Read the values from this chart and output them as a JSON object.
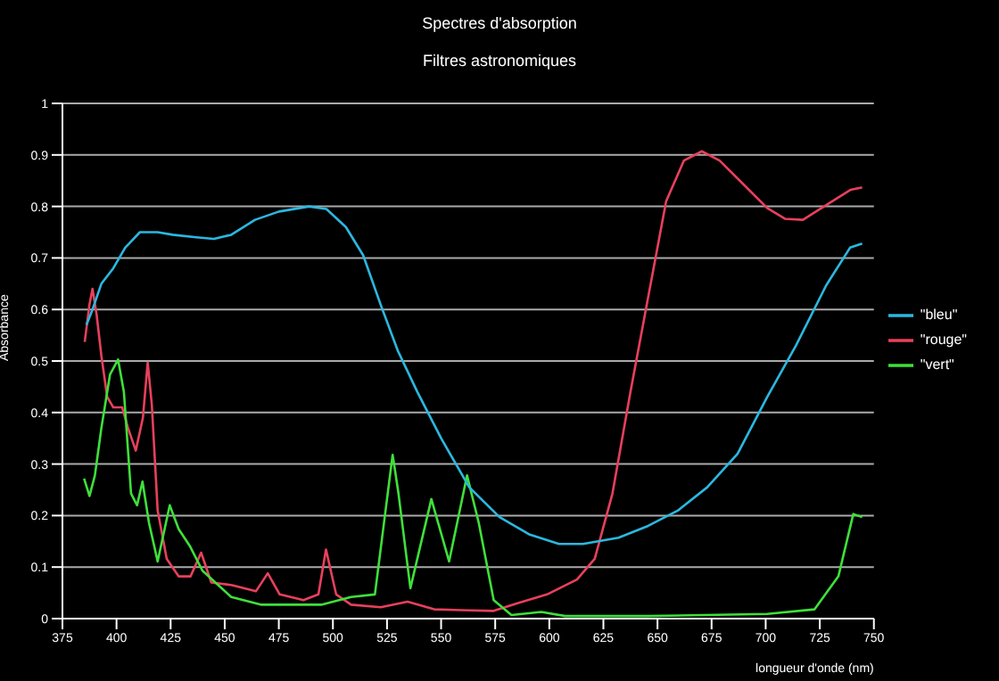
{
  "chart_data": {
    "type": "line",
    "title": "Spectres d'absorption",
    "subtitle": "Filtres astronomiques",
    "xlabel": "longueur d'onde (nm)",
    "ylabel": "Absorbance",
    "xlim": [
      375,
      750
    ],
    "xticks": [
      375,
      400,
      425,
      450,
      475,
      500,
      525,
      550,
      575,
      600,
      625,
      650,
      675,
      700,
      725,
      750
    ],
    "ylim": [
      0,
      1
    ],
    "yticks": [
      0,
      0.1,
      0.2,
      0.3,
      0.4,
      0.5,
      0.6,
      0.7,
      0.8,
      0.9,
      1
    ],
    "grid": "y",
    "legend": "right",
    "marker": "none",
    "line_style": "solid",
    "series": [
      {
        "name": "\"rouge\"",
        "color": "#e8405c",
        "x": [
          385.3,
          387.5,
          388.9,
          390.8,
          393,
          395.7,
          398.5,
          402.6,
          405.3,
          408.9,
          412.2,
          414.4,
          416.3,
          419,
          423.2,
          428.7,
          434.2,
          439.1,
          443.8,
          453.4,
          464.4,
          469.9,
          475.4,
          486.4,
          493.3,
          496.8,
          501.5,
          508.4,
          522.1,
          534.5,
          546.8,
          563.3,
          574.3,
          585.3,
          599,
          612.8,
          621,
          629.2,
          637.5,
          645.7,
          654,
          662.2,
          670.5,
          678.7,
          689.7,
          700.7,
          708.9,
          717.2,
          728.1,
          739.1,
          744.6
        ],
        "values": [
          0.537,
          0.61,
          0.64,
          0.59,
          0.51,
          0.43,
          0.41,
          0.41,
          0.37,
          0.326,
          0.39,
          0.497,
          0.416,
          0.21,
          0.116,
          0.082,
          0.082,
          0.128,
          0.07,
          0.065,
          0.053,
          0.088,
          0.047,
          0.036,
          0.047,
          0.134,
          0.047,
          0.027,
          0.022,
          0.033,
          0.018,
          0.016,
          0.015,
          0.03,
          0.047,
          0.076,
          0.116,
          0.243,
          0.44,
          0.624,
          0.81,
          0.889,
          0.907,
          0.889,
          0.843,
          0.797,
          0.776,
          0.774,
          0.803,
          0.832,
          0.837
        ]
      },
      {
        "name": "\"vert\"",
        "color": "#3ee03a",
        "x": [
          385,
          387.5,
          390,
          393,
          397,
          400.7,
          403.4,
          406.7,
          409.5,
          412,
          415,
          419,
          424.6,
          428.7,
          434,
          439.7,
          453,
          467,
          494.6,
          508.4,
          519.4,
          527.6,
          530.3,
          535.8,
          545.5,
          553.7,
          562,
          567.4,
          574.3,
          582.5,
          596.3,
          607.3,
          645.7,
          700.7,
          722.6,
          733.6,
          740.5,
          744.6
        ],
        "values": [
          0.272,
          0.238,
          0.278,
          0.37,
          0.474,
          0.503,
          0.44,
          0.243,
          0.22,
          0.266,
          0.186,
          0.111,
          0.22,
          0.174,
          0.14,
          0.093,
          0.042,
          0.027,
          0.027,
          0.042,
          0.047,
          0.318,
          0.243,
          0.059,
          0.232,
          0.111,
          0.278,
          0.186,
          0.036,
          0.007,
          0.013,
          0.005,
          0.005,
          0.009,
          0.018,
          0.082,
          0.203,
          0.197
        ]
      },
      {
        "name": "\"bleu\"",
        "color": "#2bb8e0",
        "x": [
          386.1,
          388.9,
          393,
          398.5,
          404,
          410.8,
          419,
          426,
          437,
          445,
          453,
          464,
          475,
          489,
          497,
          506,
          514,
          522,
          530,
          539,
          550,
          563,
          577,
          591,
          604.5,
          615.5,
          632,
          645.7,
          659.5,
          673,
          687,
          700.7,
          714,
          728,
          739,
          744.6
        ],
        "values": [
          0.57,
          0.6,
          0.65,
          0.68,
          0.72,
          0.75,
          0.75,
          0.745,
          0.74,
          0.737,
          0.745,
          0.774,
          0.79,
          0.8,
          0.795,
          0.76,
          0.705,
          0.61,
          0.52,
          0.44,
          0.35,
          0.255,
          0.197,
          0.163,
          0.145,
          0.145,
          0.157,
          0.18,
          0.21,
          0.255,
          0.32,
          0.43,
          0.53,
          0.647,
          0.72,
          0.728
        ]
      }
    ]
  }
}
